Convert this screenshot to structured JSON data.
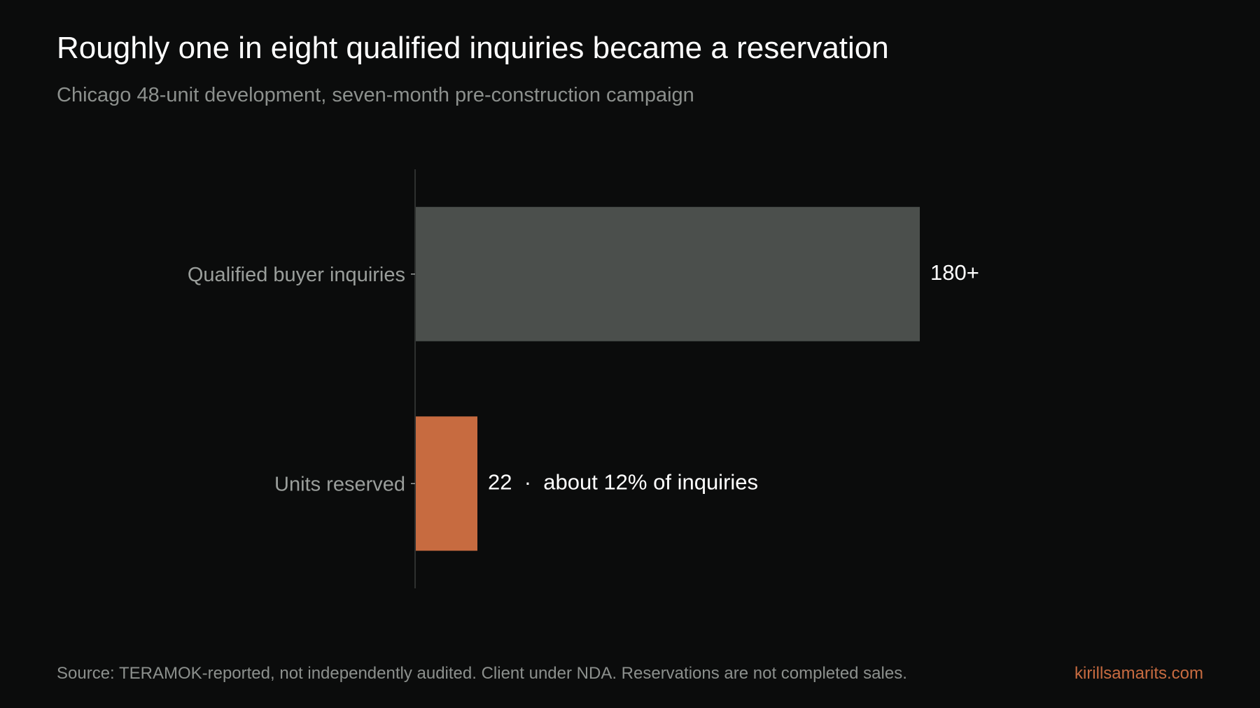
{
  "title": "Roughly one in eight qualified inquiries became a reservation",
  "subtitle": "Chicago 48-unit development, seven-month pre-construction campaign",
  "footer": {
    "source": "Source: TERAMOK-reported, not independently audited. Client under NDA. Reservations are not completed sales.",
    "brand": "kirillsamarits.com"
  },
  "colors": {
    "background": "#0b0c0c",
    "bar_primary": "#4b4f4c",
    "bar_highlight": "#c76b40",
    "axis": "#3a3d3b",
    "label_text": "#9a9e9b",
    "value_text": "#ffffff"
  },
  "chart_data": {
    "type": "bar",
    "orientation": "horizontal",
    "categories": [
      "Qualified buyer inquiries",
      "Units reserved"
    ],
    "values": [
      180,
      22
    ],
    "data_labels": [
      "180+",
      "22  ·  about 12% of inquiries"
    ],
    "bar_colors": [
      "#4b4f4c",
      "#c76b40"
    ],
    "xlim": [
      0,
      180
    ],
    "grid": false,
    "legend": "none"
  }
}
